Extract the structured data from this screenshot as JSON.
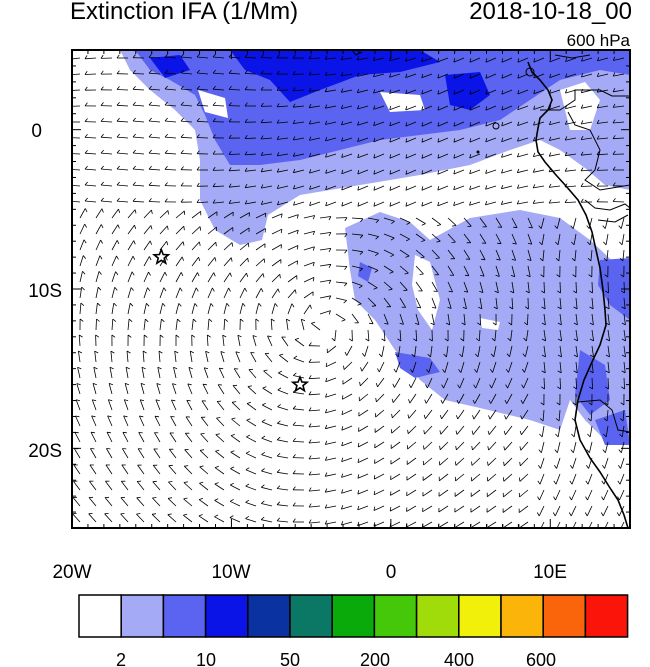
{
  "title": "Extinction IFA (1/Mm)",
  "datetime": "2018-10-18_00",
  "level": "600 hPa",
  "map": {
    "lon_range": [
      -20,
      15
    ],
    "lat_range": [
      -25,
      5
    ],
    "lon_ticks": [
      {
        "lon": -20,
        "label": "20W"
      },
      {
        "lon": -10,
        "label": "10W"
      },
      {
        "lon": 0,
        "label": "0"
      },
      {
        "lon": 10,
        "label": "10E"
      }
    ],
    "lat_ticks": [
      {
        "lat": 0,
        "label": "0"
      },
      {
        "lat": -10,
        "label": "10S"
      },
      {
        "lat": -20,
        "label": "20S"
      }
    ],
    "stars": [
      {
        "lon": -14.4,
        "lat": -8.0
      },
      {
        "lon": -5.7,
        "lat": -16.0
      }
    ]
  },
  "colorbar": {
    "colors": [
      "#ffffff",
      "#a4aaf5",
      "#5a64f0",
      "#0a14e6",
      "#0a32a0",
      "#0a7864",
      "#0aaa0a",
      "#46c80a",
      "#a0dc0a",
      "#f0f00a",
      "#fab40a",
      "#fa640a",
      "#fa140a"
    ],
    "labels": [
      "2",
      "10",
      "50",
      "200",
      "400",
      "600"
    ],
    "label_after_box": [
      1,
      3,
      5,
      7,
      9,
      11
    ]
  }
}
